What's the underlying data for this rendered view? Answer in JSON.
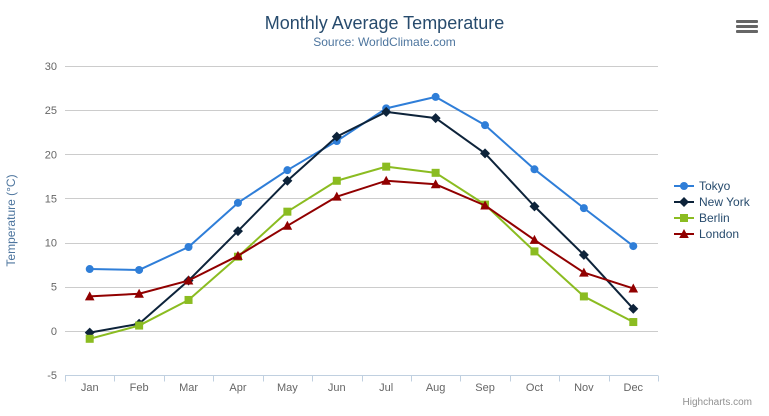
{
  "chart": {
    "title": "Monthly Average Temperature",
    "subtitle": "Source: WorldClimate.com"
  },
  "credits": {
    "label": "Highcharts.com"
  },
  "theme": {
    "title_color": "#274b6d",
    "subtitle_color": "#4d759e",
    "axis_label_color": "#666666",
    "axis_title_color": "#4d759e",
    "grid_color": "#cccccc",
    "axis_line_color": "#c0d0e0",
    "legend_text_color": "#274b6d",
    "credits_color": "#909090",
    "burger_color": "#666666"
  },
  "chart_data": {
    "type": "line",
    "title": "Monthly Average Temperature",
    "subtitle": "Source: WorldClimate.com",
    "categories": [
      "Jan",
      "Feb",
      "Mar",
      "Apr",
      "May",
      "Jun",
      "Jul",
      "Aug",
      "Sep",
      "Oct",
      "Nov",
      "Dec"
    ],
    "xlabel": "",
    "ylabel": "Temperature (°C)",
    "ylim": [
      -5,
      30
    ],
    "ytick_step": 5,
    "grid": true,
    "legend_position": "right",
    "series": [
      {
        "name": "Tokyo",
        "color": "#2f7ed8",
        "marker": "circle",
        "values": [
          7.0,
          6.9,
          9.5,
          14.5,
          18.2,
          21.5,
          25.2,
          26.5,
          23.3,
          18.3,
          13.9,
          9.6
        ]
      },
      {
        "name": "New York",
        "color": "#0d233a",
        "marker": "diamond",
        "values": [
          -0.2,
          0.8,
          5.7,
          11.3,
          17.0,
          22.0,
          24.8,
          24.1,
          20.1,
          14.1,
          8.6,
          2.5
        ]
      },
      {
        "name": "Berlin",
        "color": "#8bbc21",
        "marker": "square",
        "values": [
          -0.9,
          0.6,
          3.5,
          8.4,
          13.5,
          17.0,
          18.6,
          17.9,
          14.3,
          9.0,
          3.9,
          1.0
        ]
      },
      {
        "name": "London",
        "color": "#910000",
        "marker": "triangle",
        "values": [
          3.9,
          4.2,
          5.7,
          8.5,
          11.9,
          15.2,
          17.0,
          16.6,
          14.2,
          10.3,
          6.6,
          4.8
        ]
      }
    ]
  }
}
